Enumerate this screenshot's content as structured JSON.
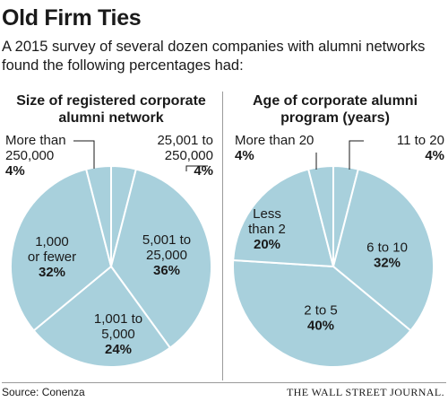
{
  "title": "Old Firm Ties",
  "subtitle": [
    "A 2015 survey of several dozen companies with alumni networks",
    "found the following percentages had:"
  ],
  "source": "Source: Conenza",
  "brand": "THE WALL STREET JOURNAL.",
  "colors": {
    "slice": "#a8d0dc",
    "stroke": "#ffffff",
    "leader": "#1a1a1a"
  },
  "chart_data": [
    {
      "type": "pie",
      "title": [
        "Size of registered corporate",
        "alumni network"
      ],
      "slices": [
        {
          "label": [
            "25,001 to",
            "250,000"
          ],
          "value": 4,
          "display": "4%"
        },
        {
          "label": [
            "5,001 to",
            "25,000"
          ],
          "value": 36,
          "display": "36%"
        },
        {
          "label": [
            "1,001 to",
            "5,000"
          ],
          "value": 24,
          "display": "24%"
        },
        {
          "label": [
            "1,000",
            "or fewer"
          ],
          "value": 32,
          "display": "32%"
        },
        {
          "label": [
            "More than",
            "250,000"
          ],
          "value": 4,
          "display": "4%"
        }
      ]
    },
    {
      "type": "pie",
      "title": [
        "Age of corporate alumni",
        "program (years)"
      ],
      "slices": [
        {
          "label": [
            "11 to 20"
          ],
          "value": 4,
          "display": "4%"
        },
        {
          "label": [
            "6 to 10"
          ],
          "value": 32,
          "display": "32%"
        },
        {
          "label": [
            "2 to 5"
          ],
          "value": 40,
          "display": "40%"
        },
        {
          "label": [
            "Less",
            "than 2"
          ],
          "value": 20,
          "display": "20%"
        },
        {
          "label": [
            "More than 20"
          ],
          "value": 4,
          "display": "4%"
        }
      ]
    }
  ]
}
